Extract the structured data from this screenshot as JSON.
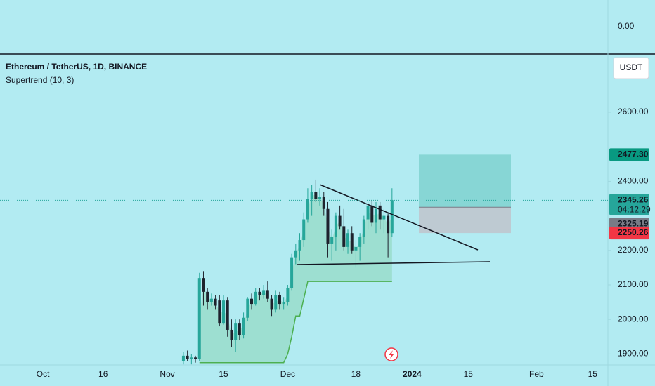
{
  "chart_data": {
    "type": "candlestick",
    "title": "Ethereum / TetherUS, 1D, BINANCE",
    "indicator": "Supertrend (10, 3)",
    "currency": "USDT",
    "top_pane_label": {
      "value": 0,
      "label": "0.00"
    },
    "xlim": [
      -10.7,
      140.8
    ],
    "xticks": [
      {
        "value": 0,
        "label": "Oct"
      },
      {
        "value": 15,
        "label": "16"
      },
      {
        "value": 31,
        "label": "Nov"
      },
      {
        "value": 45,
        "label": "15"
      },
      {
        "value": 61,
        "label": "Dec"
      },
      {
        "value": 78,
        "label": "18"
      },
      {
        "value": 92,
        "label": "2024"
      },
      {
        "value": 106,
        "label": "15"
      },
      {
        "value": 123,
        "label": "Feb"
      },
      {
        "value": 137,
        "label": "15"
      }
    ],
    "ylim": [
      1868.3,
      2768.7
    ],
    "yticks": [
      {
        "value": 1900,
        "label": "1900.00"
      },
      {
        "value": 2000,
        "label": "2000.00"
      },
      {
        "value": 2100,
        "label": "2100.00"
      },
      {
        "value": 2200,
        "label": "2200.00"
      },
      {
        "value": 2400,
        "label": "2400.00"
      },
      {
        "value": 2600,
        "label": "2600.00"
      }
    ],
    "up_color": "#26a69a",
    "down_color": "#1e222d",
    "x": [
      35,
      36,
      37,
      38,
      39,
      40,
      41,
      42,
      43,
      44,
      45,
      46,
      47,
      48,
      49,
      50,
      51,
      52,
      53,
      54,
      55,
      56,
      57,
      58,
      59,
      60,
      61,
      62,
      63,
      64,
      65,
      66,
      67,
      68,
      69,
      70,
      71,
      72,
      73,
      74,
      75,
      76,
      77,
      78,
      79,
      80,
      81,
      82,
      83,
      84,
      85,
      86,
      87
    ],
    "open": [
      1880,
      1895,
      1885,
      1890,
      1885,
      2120,
      2080,
      2050,
      2060,
      2055,
      1990,
      2055,
      1970,
      1940,
      1990,
      1955,
      2005,
      2060,
      2045,
      2080,
      2070,
      2085,
      2060,
      2030,
      2070,
      2045,
      2050,
      2090,
      2180,
      2200,
      2230,
      2290,
      2350,
      2370,
      2350,
      2355,
      2320,
      2220,
      2240,
      2300,
      2270,
      2210,
      2250,
      2200,
      2210,
      2240,
      2290,
      2330,
      2280,
      2330,
      2290,
      2300,
      2250
    ],
    "high": [
      1905,
      1910,
      1900,
      1895,
      2135,
      2140,
      2090,
      2075,
      2070,
      2070,
      2070,
      2065,
      2000,
      2000,
      2000,
      2020,
      2065,
      2075,
      2090,
      2090,
      2100,
      2110,
      2070,
      2085,
      2080,
      2065,
      2100,
      2190,
      2220,
      2250,
      2310,
      2380,
      2390,
      2405,
      2380,
      2370,
      2340,
      2260,
      2310,
      2330,
      2320,
      2260,
      2270,
      2230,
      2250,
      2300,
      2340,
      2345,
      2340,
      2340,
      2320,
      2310,
      2380
    ],
    "low": [
      1870,
      1880,
      1870,
      1875,
      1880,
      2040,
      2030,
      2040,
      2030,
      1980,
      1985,
      1950,
      1920,
      1905,
      1940,
      1945,
      1995,
      2030,
      2040,
      2055,
      2060,
      2050,
      2010,
      2020,
      2030,
      2030,
      2040,
      2085,
      2160,
      2170,
      2210,
      2280,
      2300,
      2340,
      2330,
      2300,
      2180,
      2170,
      2200,
      2260,
      2200,
      2190,
      2190,
      2150,
      2170,
      2220,
      2260,
      2270,
      2250,
      2260,
      2250,
      2180,
      2240
    ],
    "close": [
      1895,
      1885,
      1890,
      1885,
      2120,
      2080,
      2050,
      2060,
      2040,
      1990,
      2055,
      1970,
      1940,
      1990,
      1955,
      2005,
      2060,
      2045,
      2080,
      2070,
      2085,
      2060,
      2030,
      2070,
      2045,
      2050,
      2090,
      2180,
      2200,
      2230,
      2290,
      2350,
      2370,
      2350,
      2355,
      2320,
      2220,
      2240,
      2300,
      2270,
      2210,
      2250,
      2200,
      2210,
      2240,
      2290,
      2330,
      2280,
      2320,
      2290,
      2300,
      2250,
      2345.26
    ],
    "supertrend": {
      "color": "#4caf50",
      "values": [
        null,
        null,
        null,
        null,
        1875,
        1875,
        1875,
        1875,
        1875,
        1875,
        1875,
        1875,
        1875,
        1875,
        1875,
        1875,
        1875,
        1875,
        1875,
        1875,
        1875,
        1875,
        1875,
        1875,
        1875,
        1875,
        1900,
        1950,
        2010,
        2010,
        2060,
        2110,
        2110,
        2110,
        2110,
        2110,
        2110,
        2110,
        2110,
        2110,
        2110,
        2110,
        2110,
        2110,
        2110,
        2110,
        2110,
        2110,
        2110,
        2110,
        2110,
        2110,
        2110
      ]
    },
    "price_labels": [
      {
        "value": 2477.3,
        "label": "2477.30",
        "color": "#089981"
      },
      {
        "value": 2345.26,
        "label": "2345.26",
        "countdown": "04:12:29",
        "color": "#26a69a"
      },
      {
        "value": 2325.19,
        "label": "2325.19",
        "color": "#787b86"
      },
      {
        "value": 2250.26,
        "label": "2250.26",
        "color": "#f23645"
      }
    ],
    "position": {
      "target": 2477.3,
      "entry": 2325.19,
      "stop": 2250.26
    }
  }
}
